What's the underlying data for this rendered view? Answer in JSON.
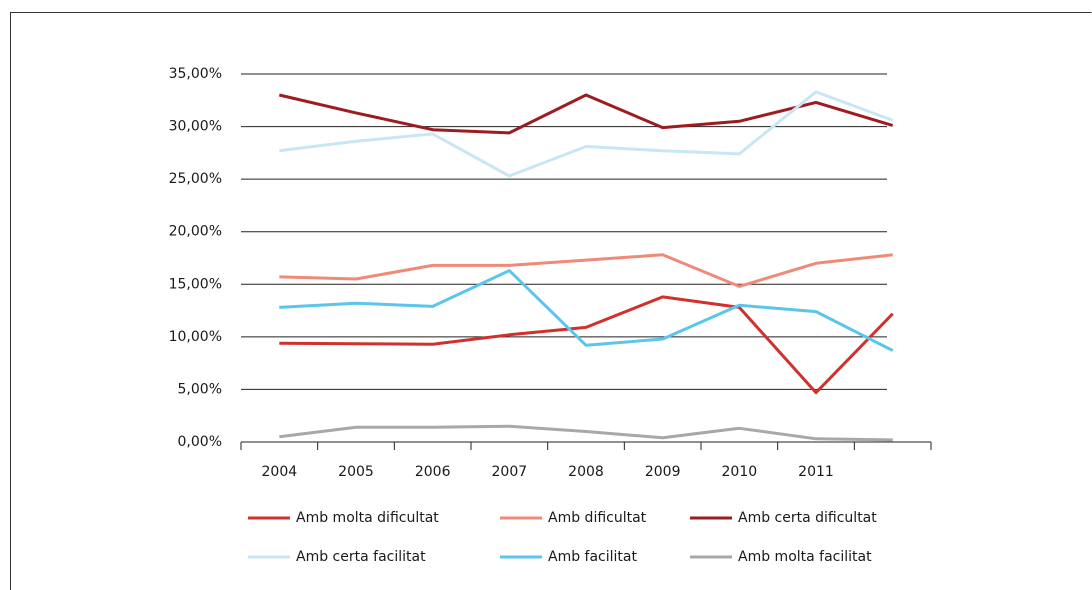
{
  "chart_data": {
    "type": "line",
    "categories": [
      "2004",
      "2005",
      "2006",
      "2007",
      "2008",
      "2009",
      "2010",
      "2011",
      null
    ],
    "series": [
      {
        "name": "Amb molta dificultat",
        "color": "#d0312d",
        "values": [
          9.4,
          9.35,
          9.3,
          10.2,
          10.9,
          13.8,
          12.8,
          4.7,
          12.2
        ]
      },
      {
        "name": "Amb dificultat",
        "color": "#f08a78",
        "values": [
          15.7,
          15.5,
          16.8,
          16.8,
          17.3,
          17.8,
          14.8,
          17.0,
          17.8
        ]
      },
      {
        "name": "Amb certa dificultat",
        "color": "#9e1b1f",
        "values": [
          33.0,
          31.3,
          29.7,
          29.4,
          33.0,
          29.9,
          30.5,
          32.3,
          30.1
        ]
      },
      {
        "name": "Amb certa facilitat",
        "color": "#c9e6f5",
        "values": [
          27.7,
          28.6,
          29.3,
          25.3,
          28.1,
          27.7,
          27.4,
          33.3,
          30.6
        ]
      },
      {
        "name": "Amb facilitat",
        "color": "#5bc5ec",
        "values": [
          12.8,
          13.2,
          12.9,
          16.3,
          9.2,
          9.8,
          13.0,
          12.4,
          8.7
        ]
      },
      {
        "name": "Amb molta facilitat",
        "color": "#a8a8a8",
        "values": [
          0.5,
          1.4,
          1.4,
          1.5,
          1.0,
          0.4,
          1.3,
          0.3,
          0.2
        ]
      }
    ],
    "ylim": [
      0,
      35
    ],
    "yticks": [
      {
        "value": 0,
        "label": "0,00%"
      },
      {
        "value": 5,
        "label": "5,00%"
      },
      {
        "value": 10,
        "label": "10,00%"
      },
      {
        "value": 15,
        "label": "15,00%"
      },
      {
        "value": 20,
        "label": "20,00%"
      },
      {
        "value": 25,
        "label": "25,00%"
      },
      {
        "value": 30,
        "label": "30,00%"
      },
      {
        "value": 35,
        "label": "35,00%"
      }
    ],
    "grid": true,
    "legend": "bottom"
  }
}
